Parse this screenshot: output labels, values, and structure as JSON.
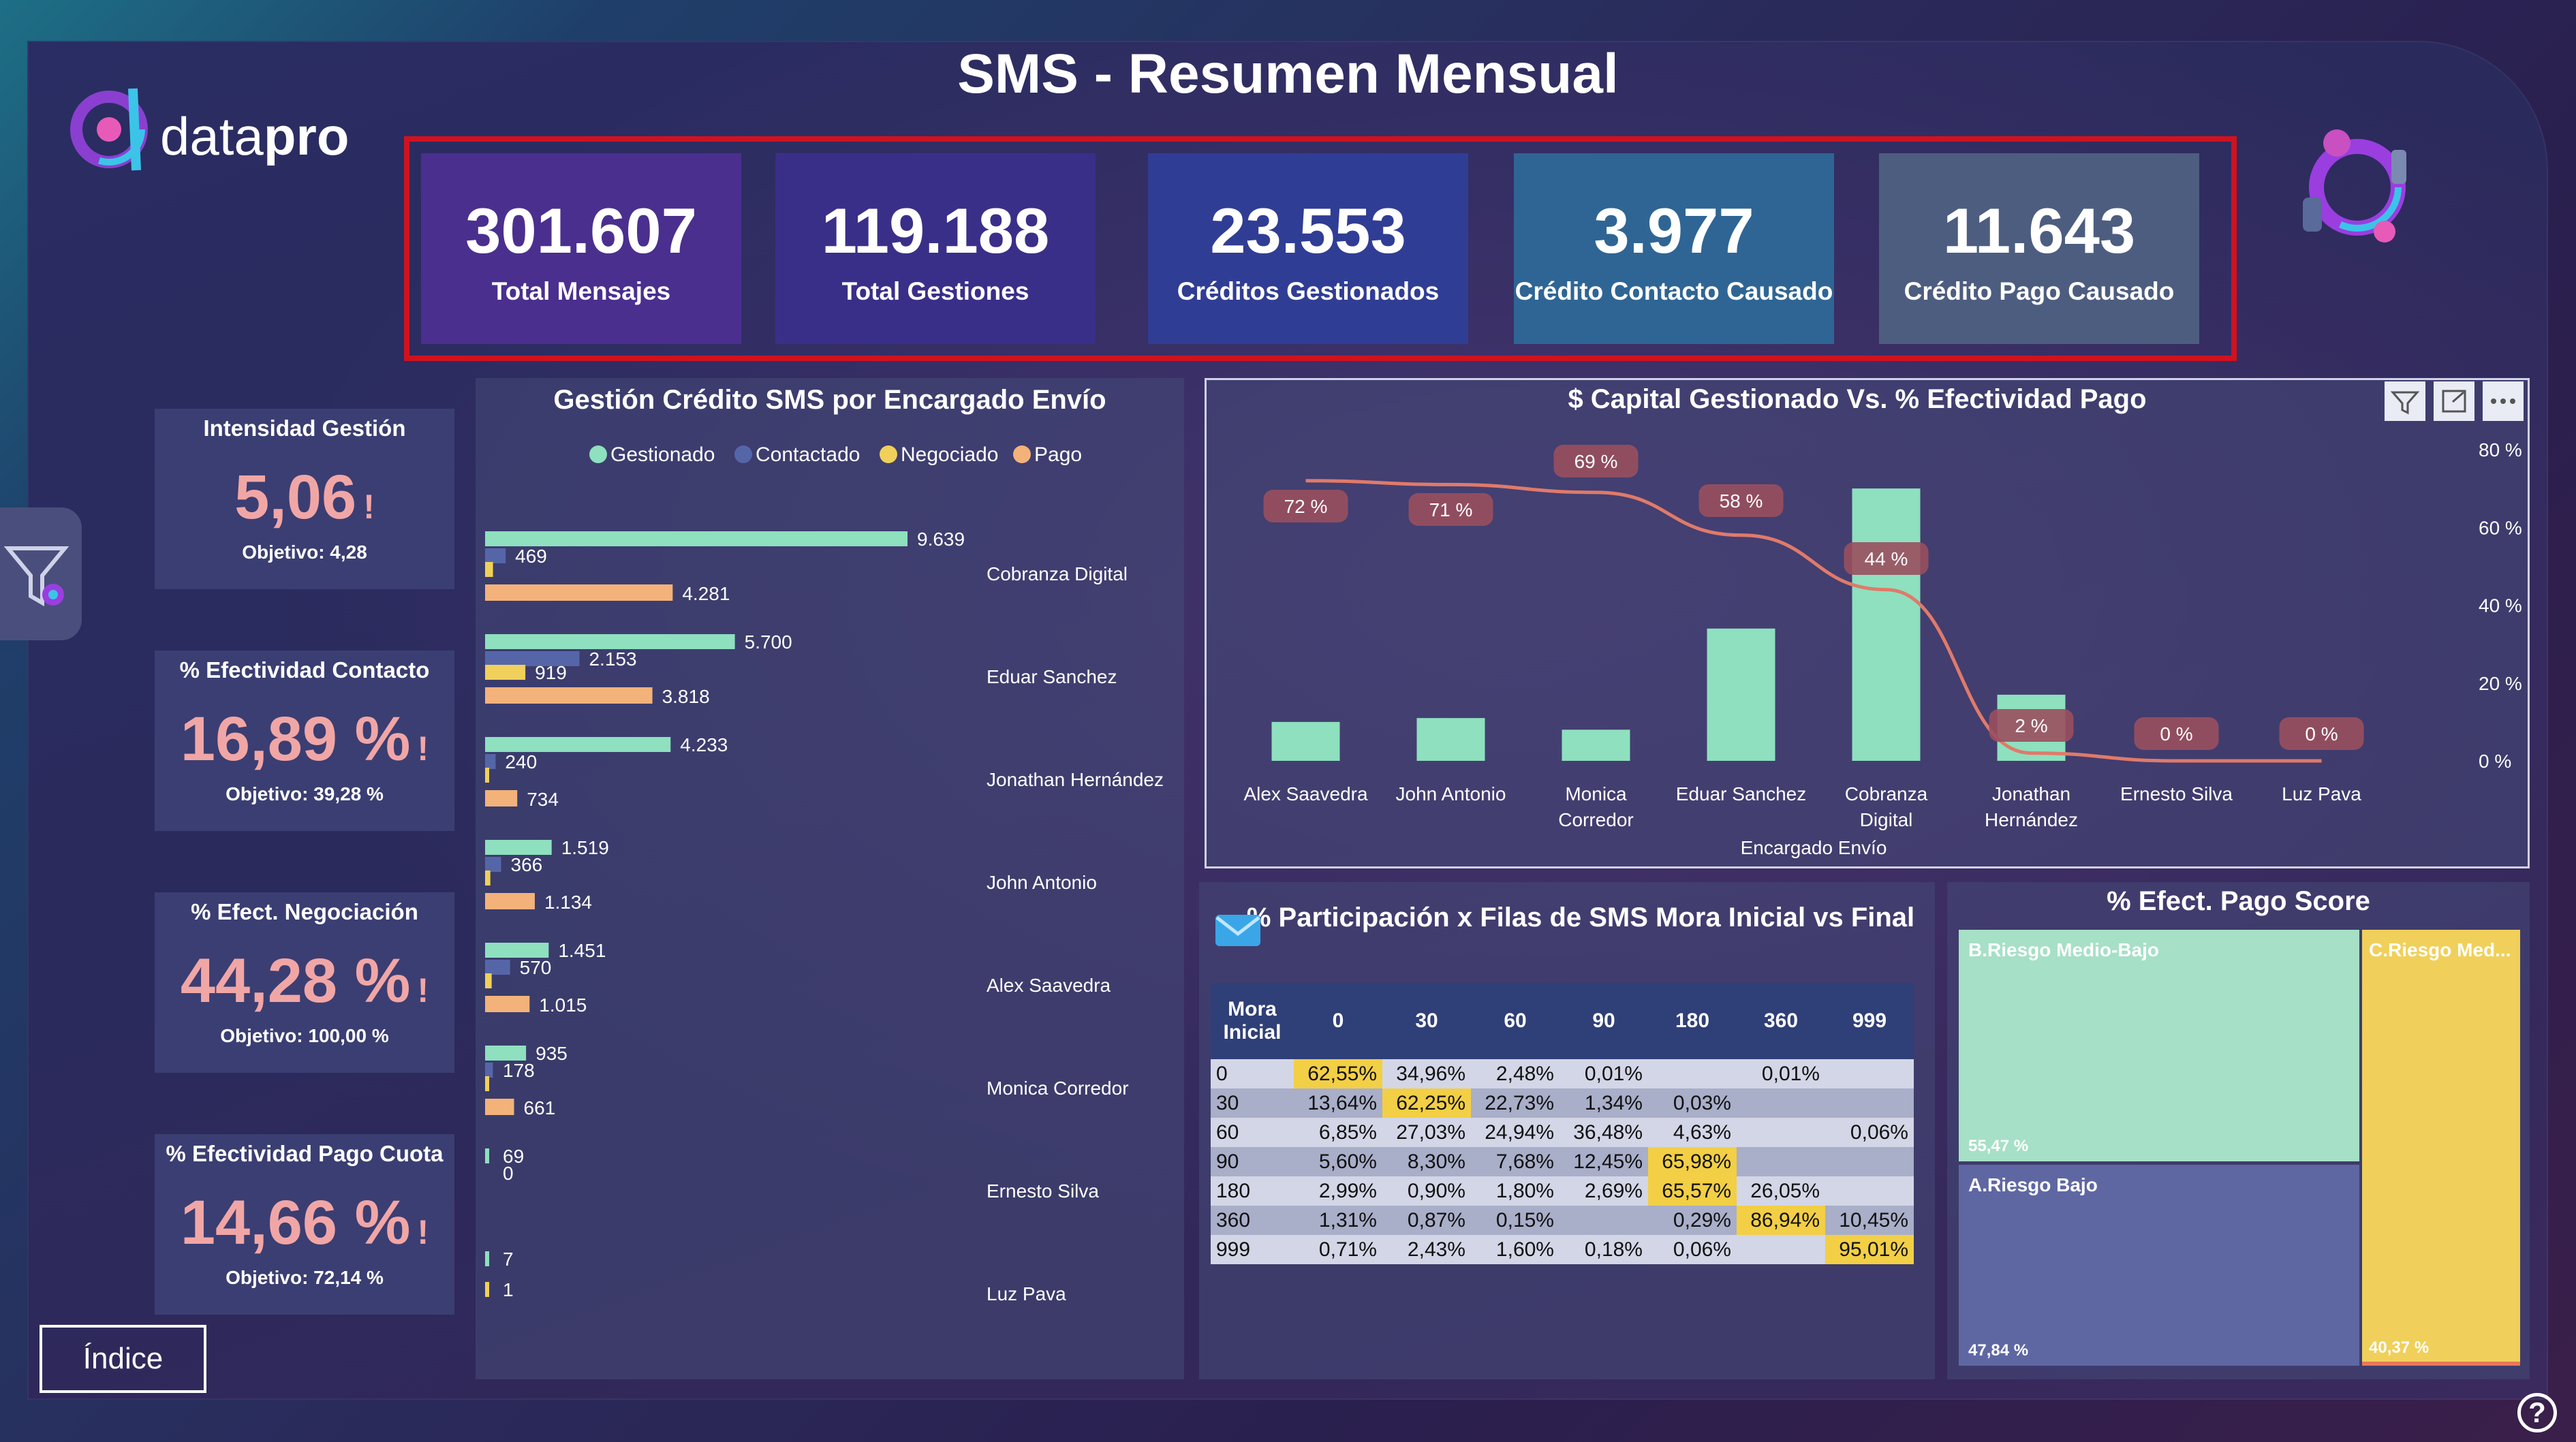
{
  "header": {
    "title": "SMS - Resumen Mensual",
    "logo_text_prefix": "data",
    "logo_text_bold": "pro"
  },
  "kpis": [
    {
      "value": "301.607",
      "label": "Total Mensajes",
      "color": "#4a2f8e"
    },
    {
      "value": "119.188",
      "label": "Total Gestiones",
      "color": "#3a2f88"
    },
    {
      "value": "23.553",
      "label": "Créditos Gestionados",
      "color": "#303d94"
    },
    {
      "value": "3.977",
      "label": "Crédito Contacto Causado",
      "color": "#2f6594"
    },
    {
      "value": "11.643",
      "label": "Crédito Pago Causado",
      "color": "#4d5d80"
    }
  ],
  "side_cards": [
    {
      "title": "Intensidad Gestión",
      "value": "5,06",
      "alert": "!",
      "objective": "Objetivo: 4,28"
    },
    {
      "title": "% Efectividad Contacto",
      "value": "16,89 %",
      "alert": "!",
      "objective": "Objetivo: 39,28 %"
    },
    {
      "title": "% Efect. Negociación",
      "value": "44,28 %",
      "alert": "!",
      "objective": "Objetivo: 100,00 %"
    },
    {
      "title": "% Efectividad Pago Cuota",
      "value": "14,66 %",
      "alert": "!",
      "objective": "Objetivo: 72,14 %"
    }
  ],
  "index_button": "Índice",
  "help_glyph": "?",
  "colors": {
    "gestionado": "#8ee0bf",
    "contactado": "#5566a8",
    "negociado": "#f0d05a",
    "pago": "#f3b27a",
    "line": "#e07a6a",
    "alert": "#f1a6a6"
  },
  "chart_data": [
    {
      "type": "bar",
      "title": "Gestión Crédito SMS por Encargado Envío",
      "orientation": "horizontal",
      "legend": [
        "Gestionado",
        "Contactado",
        "Negociado",
        "Pago"
      ],
      "legend_position": "top",
      "categories": [
        "Cobranza Digital",
        "Eduar Sanchez",
        "Jonathan Hernández",
        "John Antonio",
        "Alex Saavedra",
        "Monica Corredor",
        "Ernesto Silva",
        "Luz Pava"
      ],
      "series": [
        {
          "name": "Gestionado",
          "values": [
            9639,
            5700,
            4233,
            1519,
            1451,
            935,
            69,
            7
          ],
          "labels": [
            "9.639",
            "5.700",
            "4.233",
            "1.519",
            "1.451",
            "935",
            "69",
            "7"
          ]
        },
        {
          "name": "Contactado",
          "values": [
            469,
            2153,
            240,
            366,
            570,
            178,
            0,
            0
          ],
          "labels": [
            "469",
            "2.153",
            "240",
            "366",
            "570",
            "178",
            "0",
            ""
          ]
        },
        {
          "name": "Negociado",
          "values": [
            180,
            919,
            60,
            120,
            150,
            40,
            0,
            1
          ],
          "labels": [
            "",
            "919",
            "",
            "",
            "",
            "",
            "",
            "1"
          ]
        },
        {
          "name": "Pago",
          "values": [
            4281,
            3818,
            734,
            1134,
            1015,
            661,
            0,
            0
          ],
          "labels": [
            "4.281",
            "3.818",
            "734",
            "1.134",
            "1.015",
            "661",
            "",
            ""
          ]
        }
      ]
    },
    {
      "type": "bar",
      "title": "$ Capital Gestionado Vs. % Efectividad Pago",
      "xlabel": "Encargado Envío",
      "categories": [
        "Alex Saavedra",
        "John Antonio",
        "Monica Corredor",
        "Eduar Sanchez",
        "Cobranza Digital",
        "Jonathan Hernández",
        "Ernesto Silva",
        "Luz Pava"
      ],
      "bars": {
        "values": [
          10,
          11,
          8,
          34,
          70,
          17,
          0,
          0
        ]
      },
      "line": {
        "values": [
          72,
          71,
          69,
          58,
          44,
          2,
          0,
          0
        ],
        "labels": [
          "72 %",
          "71 %",
          "69 %",
          "58 %",
          "44 %",
          "2 %",
          "0 %",
          "0 %"
        ]
      },
      "y2_ticks": [
        "80 %",
        "60 %",
        "40 %",
        "20 %",
        "0 %"
      ],
      "y2lim": [
        0,
        80
      ]
    },
    {
      "type": "table",
      "title": "% Participación x Filas de SMS Mora Inicial vs Final",
      "corner_header": "Mora Inicial",
      "columns": [
        "0",
        "30",
        "60",
        "90",
        "180",
        "360",
        "999"
      ],
      "rows": [
        {
          "label": "0",
          "cells": [
            "62,55%",
            "34,96%",
            "2,48%",
            "0,01%",
            "",
            "0,01%",
            ""
          ]
        },
        {
          "label": "30",
          "cells": [
            "13,64%",
            "62,25%",
            "22,73%",
            "1,34%",
            "0,03%",
            "",
            ""
          ]
        },
        {
          "label": "60",
          "cells": [
            "6,85%",
            "27,03%",
            "24,94%",
            "36,48%",
            "4,63%",
            "",
            "0,06%"
          ]
        },
        {
          "label": "90",
          "cells": [
            "5,60%",
            "8,30%",
            "7,68%",
            "12,45%",
            "65,98%",
            "",
            ""
          ]
        },
        {
          "label": "180",
          "cells": [
            "2,99%",
            "0,90%",
            "1,80%",
            "2,69%",
            "65,57%",
            "26,05%",
            ""
          ]
        },
        {
          "label": "360",
          "cells": [
            "1,31%",
            "0,87%",
            "0,15%",
            "",
            "0,29%",
            "86,94%",
            "10,45%"
          ]
        },
        {
          "label": "999",
          "cells": [
            "0,71%",
            "2,43%",
            "1,60%",
            "0,18%",
            "0,06%",
            "",
            "95,01%"
          ]
        }
      ]
    },
    {
      "type": "heatmap",
      "title": "% Efect. Pago Score",
      "segments": [
        {
          "name": "B.Riesgo Medio-Bajo",
          "value_label": "55,47 %",
          "color": "#a6e0c6"
        },
        {
          "name": "A.Riesgo Bajo",
          "value_label": "47,84 %",
          "color": "#5f67a3"
        },
        {
          "name": "C.Riesgo Med...",
          "value_label": "40,37 %",
          "color": "#f0d05a"
        }
      ]
    }
  ]
}
